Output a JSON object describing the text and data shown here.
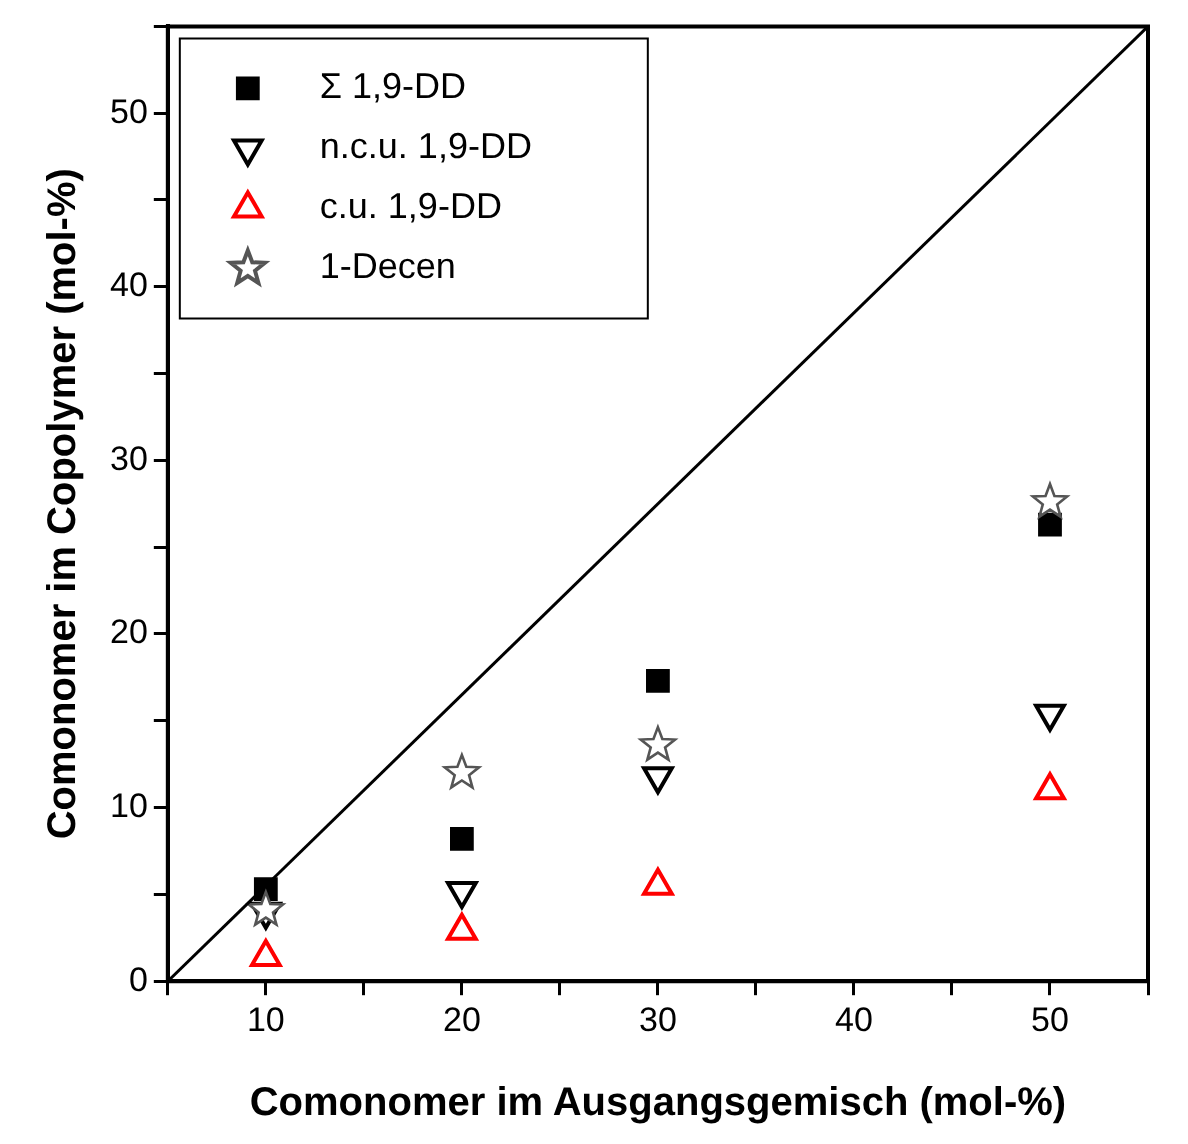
{
  "chart_data": {
    "type": "scatter",
    "xlabel": "Comonomer im Ausgangsgemisch (mol-%)",
    "ylabel": "Comonomer im Copolymer (mol-%)",
    "xlim": [
      5,
      55
    ],
    "ylim": [
      0,
      55
    ],
    "xticks": [
      {
        "value": 5,
        "label": null
      },
      10,
      {
        "value": 15,
        "label": null
      },
      20,
      {
        "value": 25,
        "label": null
      },
      30,
      {
        "value": 35,
        "label": null
      },
      40,
      {
        "value": 45,
        "label": null
      },
      50,
      {
        "value": 55,
        "label": null
      }
    ],
    "yticks": [
      0,
      {
        "value": 5,
        "label": null
      },
      10,
      {
        "value": 15,
        "label": null
      },
      20,
      {
        "value": 25,
        "label": null
      },
      30,
      {
        "value": 35,
        "label": null
      },
      40,
      {
        "value": 45,
        "label": null
      },
      50,
      {
        "value": 55,
        "label": null
      }
    ],
    "grid": false,
    "legend": "top left",
    "series": [
      {
        "name": "Σ 1,9-DD",
        "color": "#000000",
        "marker": "square",
        "x": [
          10,
          20,
          30,
          50
        ],
        "values": [
          5.3,
          8.2,
          17.3,
          26.3
        ]
      },
      {
        "name": "n.c.u. 1,9-DD",
        "color": "#000000",
        "marker": "triangle_down",
        "x": [
          10,
          20,
          30,
          50
        ],
        "values": [
          4.0,
          5.2,
          11.8,
          15.4
        ]
      },
      {
        "name": "c.u. 1,9-DD",
        "color": "#ff0000",
        "marker": "triangle",
        "x": [
          10,
          20,
          30,
          50
        ],
        "values": [
          1.4,
          2.9,
          5.5,
          11.0
        ]
      },
      {
        "name": "1-Decen",
        "color": "#555555",
        "marker": "star",
        "x": [
          10,
          20,
          30,
          50
        ],
        "values": [
          4.1,
          12.0,
          13.6,
          27.6
        ]
      },
      {
        "type": "line",
        "color": "#000000",
        "marker": "none",
        "x": [
          5,
          55
        ],
        "values": [
          0,
          55
        ]
      }
    ]
  }
}
